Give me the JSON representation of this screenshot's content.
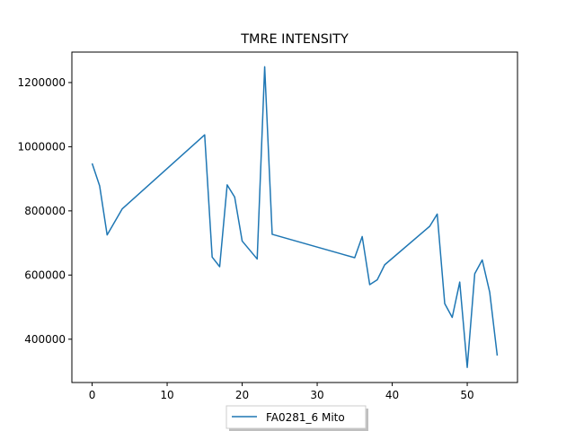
{
  "chart_data": {
    "type": "line",
    "title": "TMRE INTENSITY",
    "xlabel": "",
    "ylabel": "",
    "xlim": [
      -2.7,
      56.7
    ],
    "ylim": [
      265000,
      1295000
    ],
    "xticks": [
      0,
      10,
      20,
      30,
      40,
      50
    ],
    "yticks": [
      400000,
      600000,
      800000,
      1000000,
      1200000
    ],
    "grid": false,
    "legend_position": "below-center",
    "series": [
      {
        "name": "FA0281_6 Mito",
        "color": "#1f77b4",
        "x": [
          0,
          1,
          2,
          4,
          15,
          16,
          17,
          18,
          19,
          20,
          22,
          23,
          24,
          35,
          36,
          37,
          38,
          39,
          45,
          46,
          47,
          48,
          49,
          50,
          51,
          52,
          53,
          54
        ],
        "y": [
          948000,
          878000,
          725000,
          806000,
          1037000,
          656000,
          626000,
          881000,
          843000,
          706000,
          650000,
          1249000,
          727000,
          654000,
          720000,
          570000,
          585000,
          632000,
          752000,
          790000,
          511000,
          468000,
          578000,
          312000,
          604000,
          647000,
          546000,
          349000
        ]
      }
    ]
  }
}
